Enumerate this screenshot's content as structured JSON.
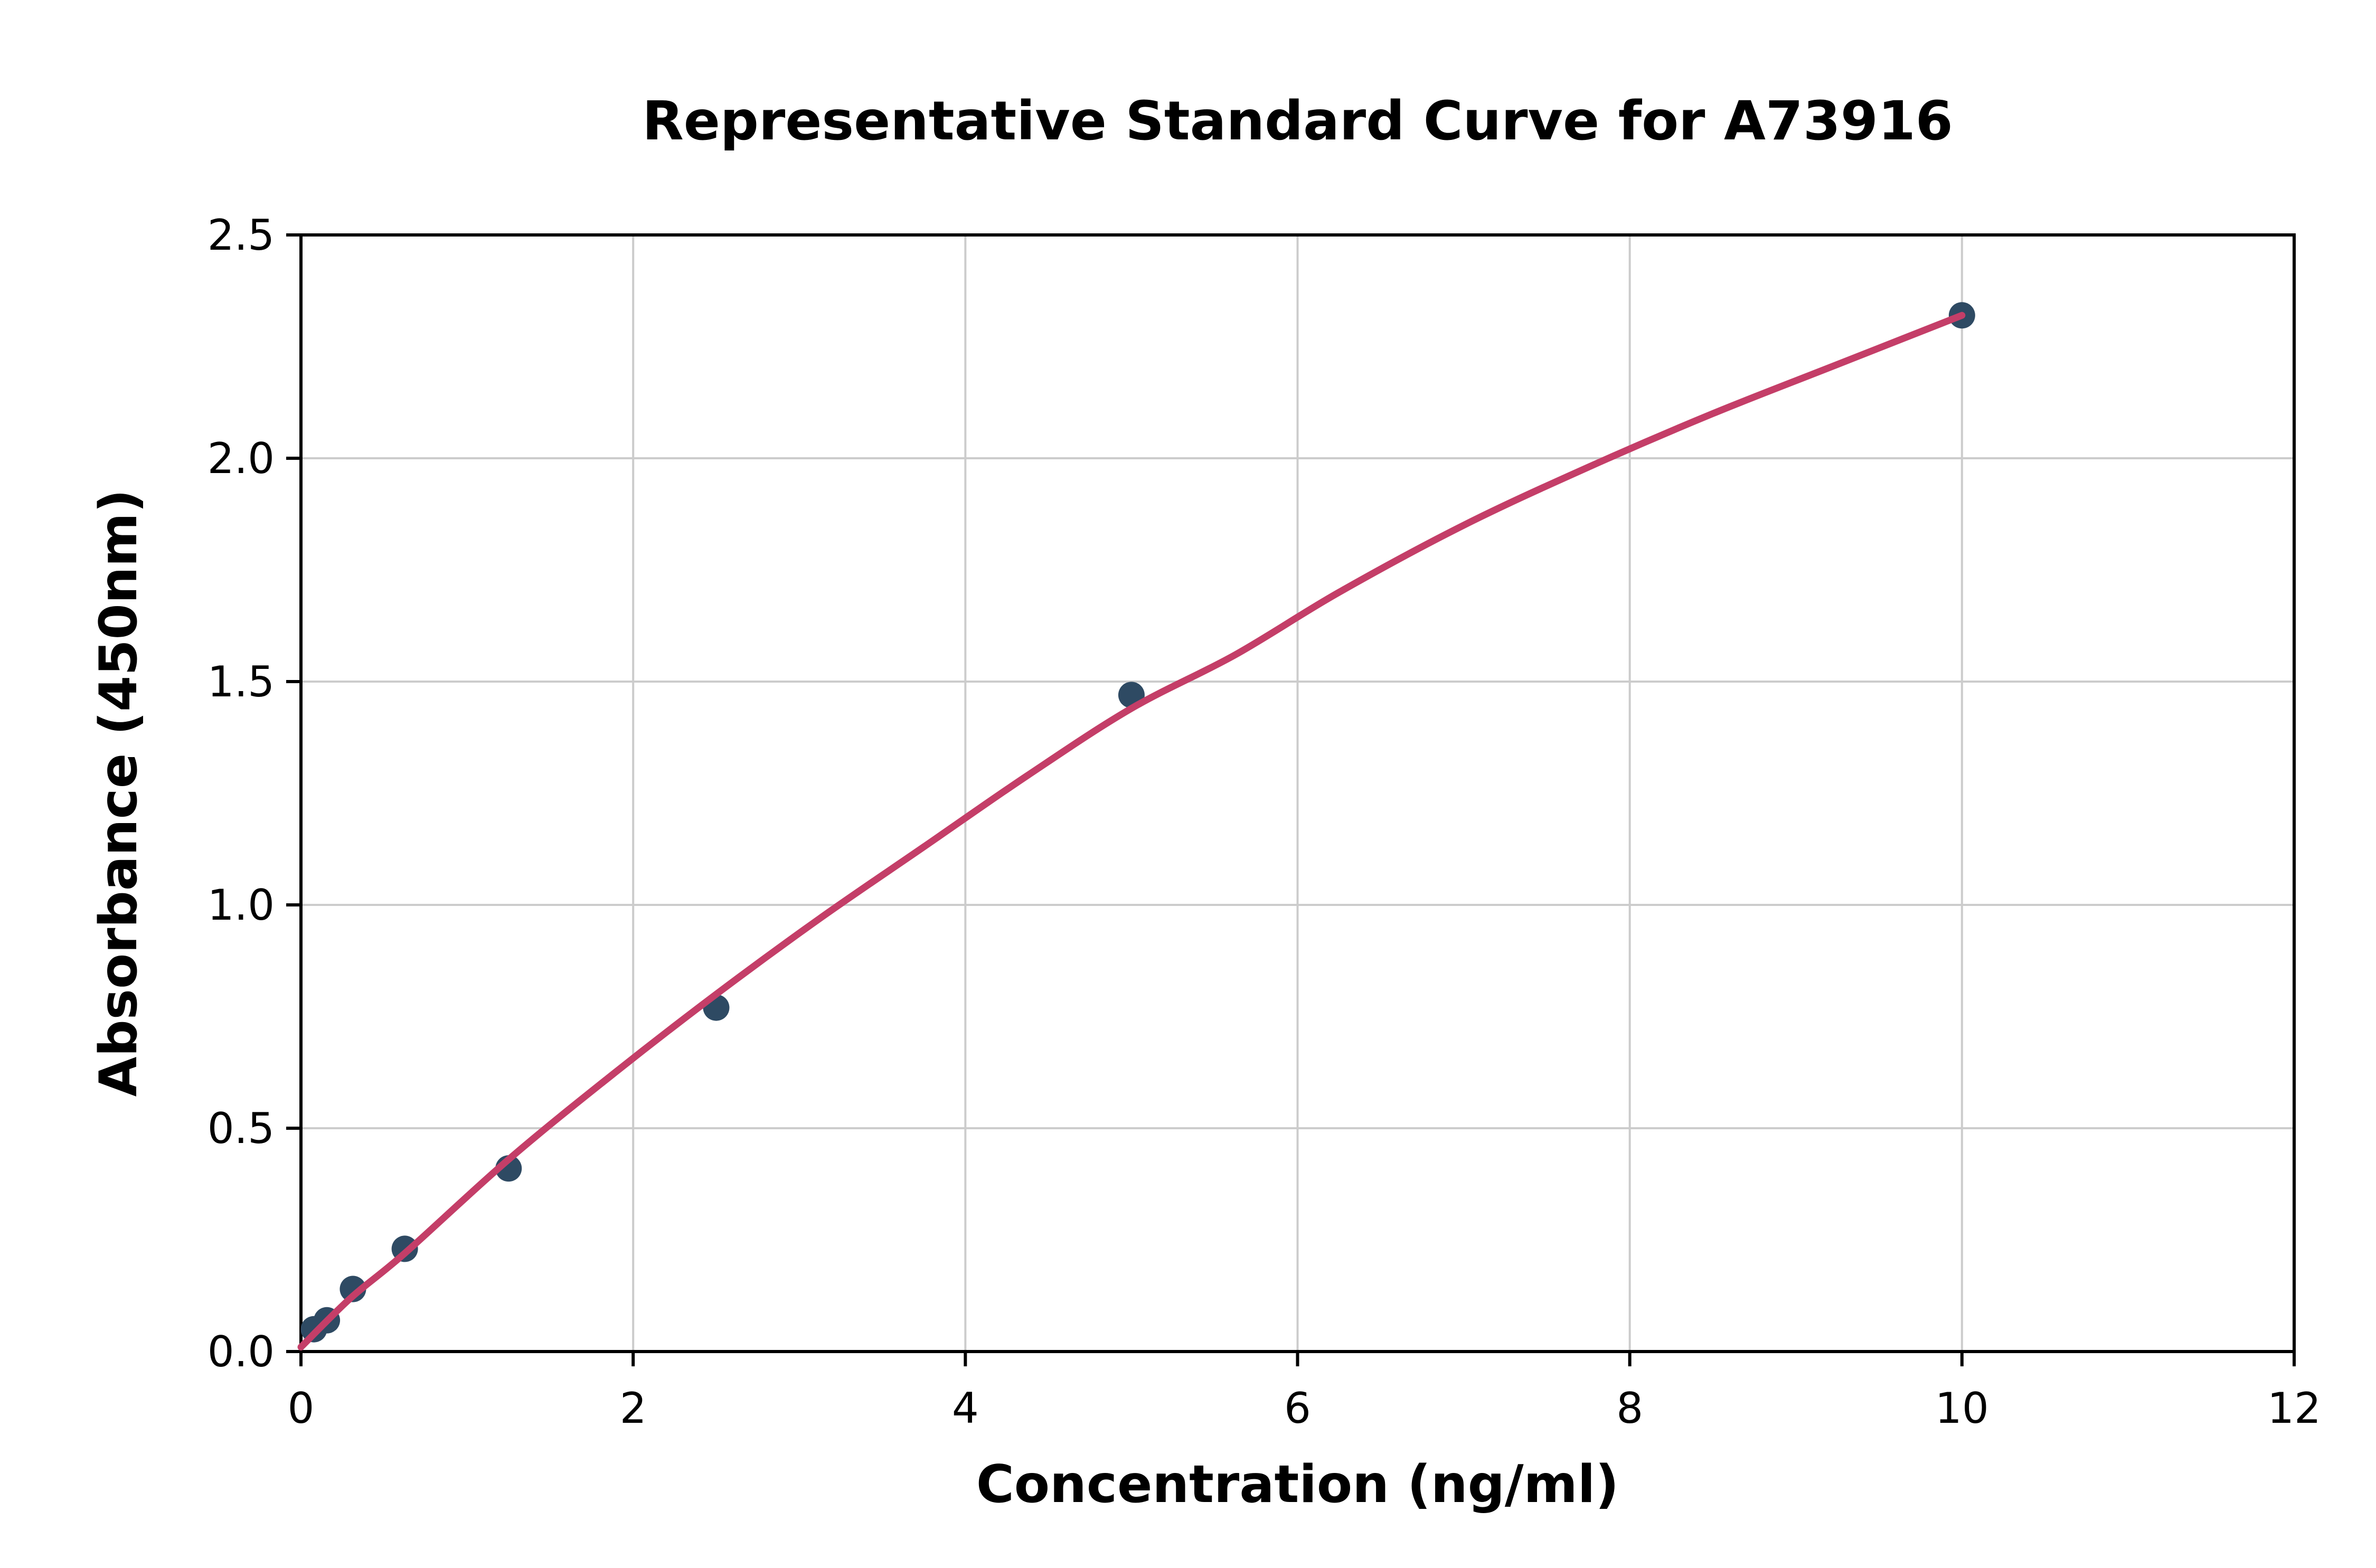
{
  "title": "Representative Standard Curve for A73916",
  "colors": {
    "curve": "#c43e68",
    "points": "#2e4a63",
    "grid": "#cccccc",
    "spine": "#000000",
    "background": "#ffffff",
    "text": "#000000"
  },
  "chart_data": {
    "type": "scatter",
    "title": "Representative Standard Curve for A73916",
    "xlabel": "Concentration (ng/ml)",
    "ylabel": "Absorbance (450nm)",
    "xlim": [
      0,
      12
    ],
    "ylim": [
      0,
      2.5
    ],
    "x_ticks": [
      0,
      2,
      4,
      6,
      8,
      10,
      12
    ],
    "x_tick_labels": [
      "0",
      "2",
      "4",
      "6",
      "8",
      "10",
      "12"
    ],
    "y_ticks": [
      0,
      0.5,
      1.0,
      1.5,
      2.0,
      2.5
    ],
    "y_tick_labels": [
      "0.0",
      "0.5",
      "1.0",
      "1.5",
      "2.0",
      "2.5"
    ],
    "grid": true,
    "legend": "none",
    "series": [
      {
        "name": "standard-points",
        "type": "scatter",
        "color": "#2e4a63",
        "points": [
          [
            0.078,
            0.05
          ],
          [
            0.156,
            0.07
          ],
          [
            0.313,
            0.14
          ],
          [
            0.625,
            0.23
          ],
          [
            1.25,
            0.41
          ],
          [
            2.5,
            0.77
          ],
          [
            5.0,
            1.47
          ],
          [
            10.0,
            2.32
          ]
        ]
      },
      {
        "name": "fitted-curve",
        "type": "line",
        "color": "#c43e68",
        "points": [
          [
            0,
            0.01
          ],
          [
            0.3,
            0.12
          ],
          [
            0.625,
            0.22
          ],
          [
            1.25,
            0.43
          ],
          [
            1.875,
            0.62
          ],
          [
            2.5,
            0.8
          ],
          [
            3.125,
            0.97
          ],
          [
            3.75,
            1.13
          ],
          [
            4.375,
            1.29
          ],
          [
            5.0,
            1.44
          ],
          [
            5.625,
            1.56
          ],
          [
            6.25,
            1.7
          ],
          [
            7.0,
            1.85
          ],
          [
            7.75,
            1.98
          ],
          [
            8.5,
            2.1
          ],
          [
            9.25,
            2.21
          ],
          [
            10.0,
            2.32
          ]
        ]
      }
    ]
  }
}
